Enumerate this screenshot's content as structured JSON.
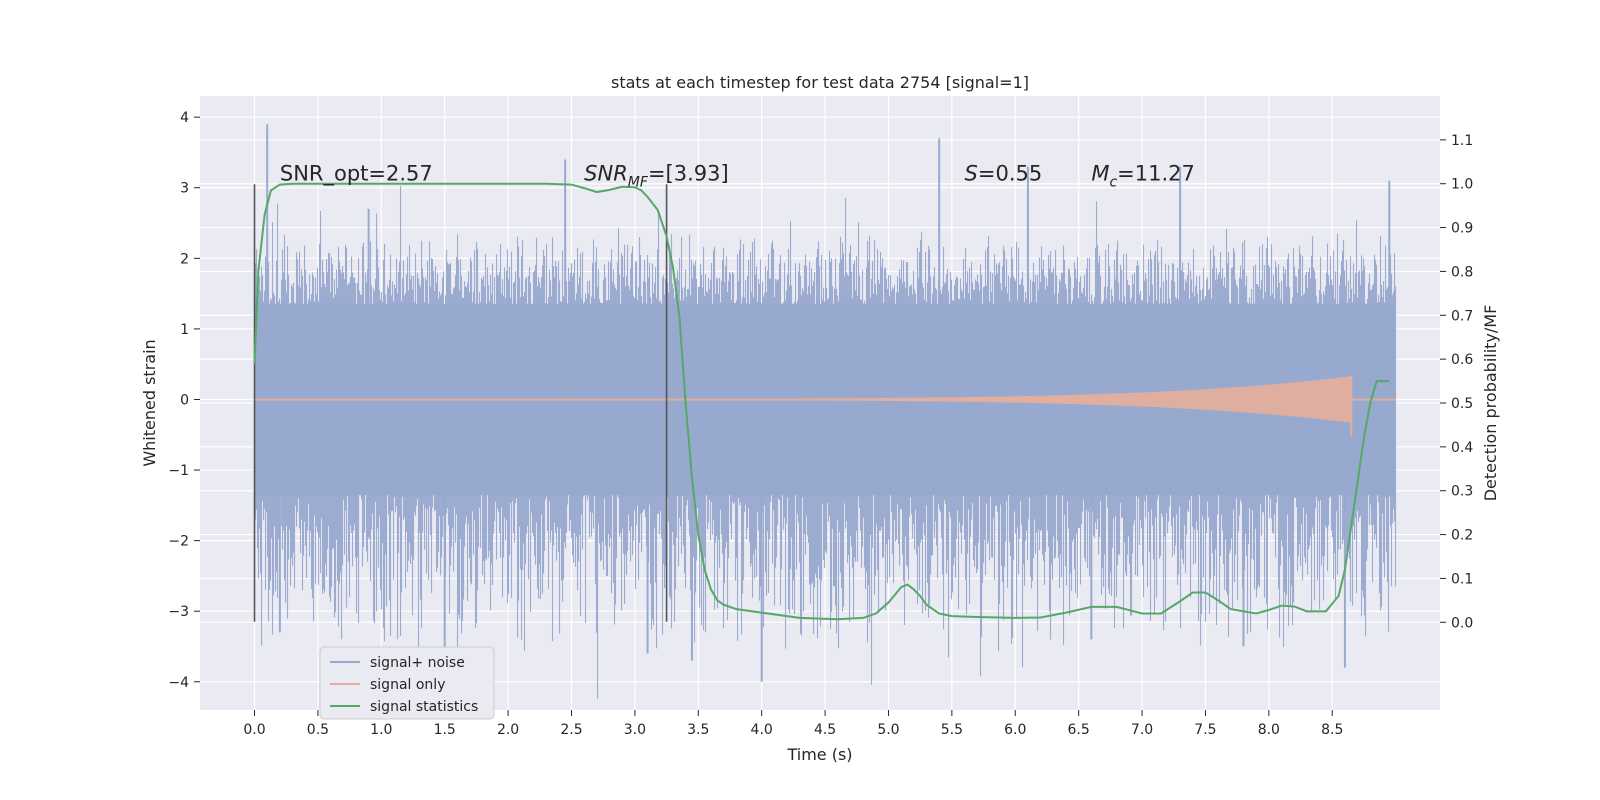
{
  "chart_data": {
    "type": "line",
    "title": "stats at each timestep for test data 2754 [signal=1]",
    "xlabel": "Time (s)",
    "ylabel": "Whitened strain",
    "y2label": "Detection probability/MF",
    "xlim": [
      -0.43,
      9.35
    ],
    "ylim": [
      -4.4,
      4.3
    ],
    "y2lim": [
      -0.2,
      1.2
    ],
    "x_ticks": [
      0.0,
      0.5,
      1.0,
      1.5,
      2.0,
      2.5,
      3.0,
      3.5,
      4.0,
      4.5,
      5.0,
      5.5,
      6.0,
      6.5,
      7.0,
      7.5,
      8.0,
      8.5
    ],
    "x_tick_labels": [
      "0.0",
      "0.5",
      "1.0",
      "1.5",
      "2.0",
      "2.5",
      "3.0",
      "3.5",
      "4.0",
      "4.5",
      "5.0",
      "5.5",
      "6.0",
      "6.5",
      "7.0",
      "7.5",
      "8.0",
      "8.5"
    ],
    "y_ticks": [
      4,
      3,
      2,
      1,
      0,
      -1,
      -2,
      -3,
      -4
    ],
    "y_tick_labels": [
      "4",
      "3",
      "2",
      "1",
      "0",
      "−1",
      "−2",
      "−3",
      "−4"
    ],
    "y2_ticks": [
      1.1,
      1.0,
      0.9,
      0.8,
      0.7,
      0.6,
      0.5,
      0.4,
      0.3,
      0.2,
      0.1,
      0.0
    ],
    "y2_tick_labels": [
      "1.1",
      "1.0",
      "0.9",
      "0.8",
      "0.7",
      "0.6",
      "0.5",
      "0.4",
      "0.3",
      "0.2",
      "0.1",
      "0.0"
    ],
    "grid": true,
    "legend_position": "lower-left",
    "noise": {
      "t_range": [
        0.0,
        9.0
      ],
      "band_main": [
        -1.3,
        1.3
      ],
      "band_outer": [
        -2.4,
        2.4
      ],
      "spikes": [
        [
          0.1,
          3.9
        ],
        [
          0.2,
          -3.3
        ],
        [
          0.9,
          2.7
        ],
        [
          1.5,
          -3.5
        ],
        [
          2.45,
          3.4
        ],
        [
          3.1,
          -3.6
        ],
        [
          3.45,
          -3.7
        ],
        [
          4.0,
          -4.0
        ],
        [
          5.4,
          3.7
        ],
        [
          6.1,
          3.3
        ],
        [
          6.6,
          -3.4
        ],
        [
          7.3,
          3.3
        ],
        [
          7.8,
          -3.5
        ],
        [
          8.6,
          -3.8
        ],
        [
          8.95,
          3.1
        ]
      ]
    },
    "vlines": {
      "x": [
        0.0,
        3.25
      ],
      "ymin": -3.15,
      "ymax": 3.05
    },
    "series": [
      {
        "name": "signal+ noise",
        "color": "#98a9cf",
        "kind": "noise"
      },
      {
        "name": "signal only",
        "color": "#e5ae9b",
        "kind": "chirp",
        "t_range": [
          0.0,
          8.65
        ],
        "amplitude_start": 0.01,
        "amplitude_end": 0.33,
        "post_spike": [
          -0.52,
          0.34
        ]
      },
      {
        "name": "signal statistics",
        "color": "#55a868",
        "axis": "right",
        "x": [
          0.0,
          0.03,
          0.08,
          0.13,
          0.2,
          0.3,
          0.5,
          1.0,
          1.5,
          2.0,
          2.3,
          2.5,
          2.6,
          2.7,
          2.8,
          2.9,
          3.0,
          3.05,
          3.1,
          3.18,
          3.25,
          3.3,
          3.35,
          3.4,
          3.45,
          3.5,
          3.55,
          3.6,
          3.65,
          3.7,
          3.8,
          4.0,
          4.3,
          4.6,
          4.8,
          4.9,
          5.0,
          5.1,
          5.15,
          5.2,
          5.25,
          5.3,
          5.4,
          5.5,
          5.7,
          6.0,
          6.2,
          6.4,
          6.6,
          6.8,
          7.0,
          7.15,
          7.3,
          7.4,
          7.5,
          7.6,
          7.7,
          7.8,
          7.9,
          8.0,
          8.1,
          8.2,
          8.3,
          8.45,
          8.55,
          8.6,
          8.65,
          8.7,
          8.75,
          8.8,
          8.85,
          8.9,
          8.95
        ],
        "values": [
          0.59,
          0.8,
          0.93,
          0.985,
          0.998,
          1.0,
          1.0,
          1.0,
          1.0,
          1.0,
          1.0,
          0.998,
          0.99,
          0.981,
          0.986,
          0.993,
          0.992,
          0.985,
          0.97,
          0.94,
          0.88,
          0.81,
          0.7,
          0.5,
          0.33,
          0.2,
          0.12,
          0.075,
          0.05,
          0.04,
          0.03,
          0.022,
          0.01,
          0.007,
          0.01,
          0.02,
          0.045,
          0.08,
          0.086,
          0.075,
          0.06,
          0.04,
          0.02,
          0.014,
          0.012,
          0.01,
          0.011,
          0.022,
          0.035,
          0.035,
          0.02,
          0.02,
          0.048,
          0.068,
          0.068,
          0.05,
          0.03,
          0.025,
          0.02,
          0.028,
          0.038,
          0.036,
          0.025,
          0.025,
          0.06,
          0.12,
          0.22,
          0.32,
          0.42,
          0.5,
          0.55,
          0.55,
          0.55
        ]
      }
    ],
    "annotations": [
      {
        "id": "snr-opt",
        "text": "SNR_opt=2.57",
        "x": 0.2,
        "y": 3.1
      },
      {
        "id": "snr-mf",
        "base": "SNR",
        "sub": "MF",
        "rest": "=[3.93]",
        "x": 2.6,
        "y": 3.1
      },
      {
        "id": "s-value",
        "base": "S",
        "sub": "",
        "rest": "=0.55",
        "x": 5.6,
        "y": 3.1
      },
      {
        "id": "mc-value",
        "base": "M",
        "sub": "c",
        "rest": "=11.27",
        "x": 6.6,
        "y": 3.1
      }
    ]
  }
}
